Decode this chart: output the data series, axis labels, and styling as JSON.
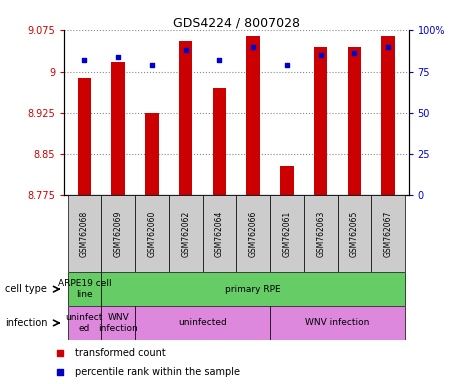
{
  "title": "GDS4224 / 8007028",
  "samples": [
    "GSM762068",
    "GSM762069",
    "GSM762060",
    "GSM762062",
    "GSM762064",
    "GSM762066",
    "GSM762061",
    "GSM762063",
    "GSM762065",
    "GSM762067"
  ],
  "transformed_counts": [
    8.988,
    9.018,
    8.925,
    9.055,
    8.97,
    9.065,
    8.828,
    9.045,
    9.045,
    9.065
  ],
  "percentile_ranks": [
    82,
    84,
    79,
    88,
    82,
    90,
    79,
    85,
    86,
    90
  ],
  "ylim": [
    8.775,
    9.075
  ],
  "yticks": [
    8.775,
    8.85,
    8.925,
    9.0,
    9.075
  ],
  "ytick_labels": [
    "8.775",
    "8.85",
    "8.925",
    "9",
    "9.075"
  ],
  "y2lim": [
    0,
    100
  ],
  "y2ticks": [
    0,
    25,
    50,
    75,
    100
  ],
  "y2tick_labels": [
    "0",
    "25",
    "50",
    "75",
    "100%"
  ],
  "bar_color": "#cc0000",
  "dot_color": "#0000cc",
  "bar_bottom": 8.775,
  "cell_type_groups": [
    {
      "label": "ARPE19 cell\nline",
      "start": 0,
      "end": 0,
      "color": "#66cc66"
    },
    {
      "label": "primary RPE",
      "start": 1,
      "end": 9,
      "color": "#66cc66"
    }
  ],
  "infection_groups": [
    {
      "label": "uninfect\ned",
      "start": 0,
      "end": 0,
      "color": "#dd88dd"
    },
    {
      "label": "WNV\ninfection",
      "start": 1,
      "end": 1,
      "color": "#dd88dd"
    },
    {
      "label": "uninfected",
      "start": 2,
      "end": 5,
      "color": "#dd88dd"
    },
    {
      "label": "WNV infection",
      "start": 6,
      "end": 9,
      "color": "#dd88dd"
    }
  ],
  "cell_type_label": "cell type",
  "infection_label": "infection",
  "legend_red_label": "transformed count",
  "legend_blue_label": "percentile rank within the sample",
  "grid_color": "#888888",
  "tick_color_left": "#cc0000",
  "tick_color_right": "#0000cc",
  "sample_label_bg": "#cccccc",
  "bar_width": 0.4
}
